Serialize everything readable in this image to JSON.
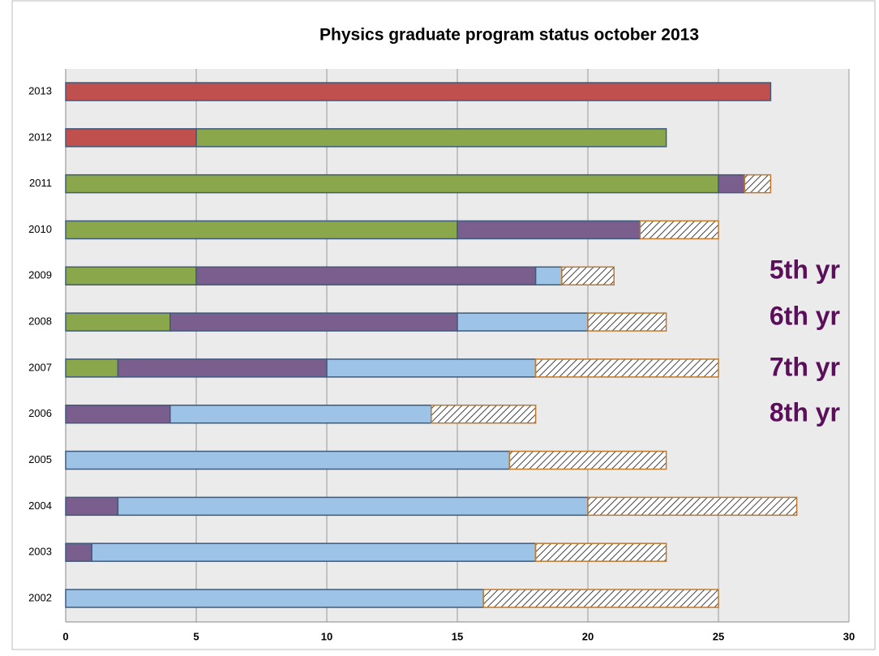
{
  "chart_data": {
    "type": "stacked-barh",
    "title": "Physics graduate program status october 2013",
    "categories": [
      "2013",
      "2012",
      "2011",
      "2010",
      "2009",
      "2008",
      "2007",
      "2006",
      "2005",
      "2004",
      "2003",
      "2002"
    ],
    "series": [
      {
        "color": "#c0504d",
        "values": [
          27,
          5,
          0,
          0,
          0,
          0,
          0,
          0,
          0,
          0,
          0,
          0
        ]
      },
      {
        "color": "#8aa84b",
        "values": [
          0,
          18,
          25,
          15,
          5,
          4,
          2,
          0,
          0,
          0,
          0,
          0
        ]
      },
      {
        "color": "#7a5f8e",
        "values": [
          0,
          0,
          1,
          7,
          13,
          11,
          8,
          4,
          0,
          2,
          1,
          0
        ]
      },
      {
        "color": "#9dc3e6",
        "values": [
          0,
          0,
          0,
          0,
          1,
          5,
          8,
          10,
          17,
          18,
          17,
          16
        ]
      },
      {
        "color": "#c0782c",
        "pattern": "hatch",
        "values": [
          0,
          0,
          1,
          3,
          2,
          3,
          7,
          4,
          6,
          8,
          5,
          9
        ]
      }
    ],
    "xlim": [
      0,
      30
    ],
    "xticks": [
      0,
      5,
      10,
      15,
      20,
      25,
      30
    ],
    "grid": true,
    "annotations": [
      "5th yr",
      "6th yr",
      "7th yr",
      "8th yr"
    ]
  }
}
